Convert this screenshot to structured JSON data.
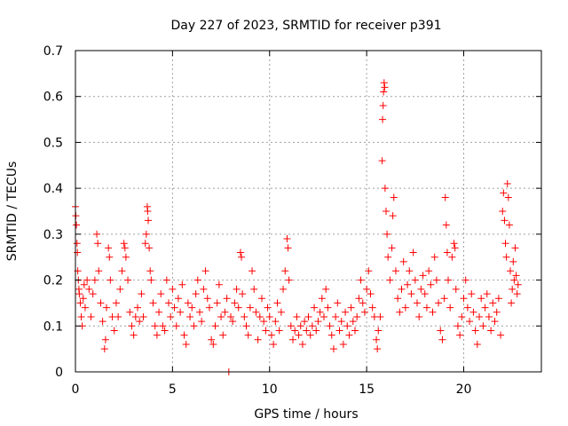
{
  "chart_data": {
    "type": "scatter",
    "title": "Day 227 of 2023, SRMTID for receiver p391",
    "xlabel": "GPS time / hours",
    "ylabel": "SRMTID / TECUs",
    "xlim": [
      0,
      24
    ],
    "ylim": [
      0,
      0.7
    ],
    "xticks": [
      0,
      5,
      10,
      15,
      20
    ],
    "xtick_labels": [
      "0",
      "5",
      "10",
      "15",
      "20"
    ],
    "yticks": [
      0,
      0.1,
      0.2,
      0.3,
      0.4,
      0.5,
      0.6,
      0.7
    ],
    "ytick_labels": [
      "0",
      "0.1",
      "0.2",
      "0.3",
      "0.4",
      "0.5",
      "0.6",
      "0.7"
    ],
    "grid": true,
    "marker": "+",
    "color": "#ff0000",
    "series": [
      {
        "name": "SRMTID",
        "points": [
          [
            0.0,
            0.36
          ],
          [
            0.02,
            0.34
          ],
          [
            0.05,
            0.32
          ],
          [
            0.08,
            0.28
          ],
          [
            0.1,
            0.26
          ],
          [
            0.12,
            0.22
          ],
          [
            0.15,
            0.2
          ],
          [
            0.18,
            0.18
          ],
          [
            0.2,
            0.17
          ],
          [
            0.25,
            0.15
          ],
          [
            0.3,
            0.12
          ],
          [
            0.35,
            0.1
          ],
          [
            0.4,
            0.16
          ],
          [
            0.45,
            0.19
          ],
          [
            0.5,
            0.14
          ],
          [
            0.6,
            0.2
          ],
          [
            0.7,
            0.18
          ],
          [
            0.8,
            0.12
          ],
          [
            0.9,
            0.17
          ],
          [
            1.0,
            0.2
          ],
          [
            1.1,
            0.3
          ],
          [
            1.15,
            0.28
          ],
          [
            1.2,
            0.22
          ],
          [
            1.3,
            0.15
          ],
          [
            1.4,
            0.11
          ],
          [
            1.5,
            0.05
          ],
          [
            1.55,
            0.07
          ],
          [
            1.6,
            0.14
          ],
          [
            1.7,
            0.27
          ],
          [
            1.75,
            0.25
          ],
          [
            1.8,
            0.2
          ],
          [
            1.9,
            0.12
          ],
          [
            2.0,
            0.09
          ],
          [
            2.1,
            0.15
          ],
          [
            2.2,
            0.12
          ],
          [
            2.3,
            0.18
          ],
          [
            2.4,
            0.22
          ],
          [
            2.5,
            0.28
          ],
          [
            2.55,
            0.27
          ],
          [
            2.6,
            0.25
          ],
          [
            2.7,
            0.2
          ],
          [
            2.8,
            0.13
          ],
          [
            2.9,
            0.1
          ],
          [
            3.0,
            0.08
          ],
          [
            3.1,
            0.12
          ],
          [
            3.2,
            0.14
          ],
          [
            3.3,
            0.11
          ],
          [
            3.4,
            0.17
          ],
          [
            3.5,
            0.12
          ],
          [
            3.6,
            0.28
          ],
          [
            3.65,
            0.3
          ],
          [
            3.7,
            0.36
          ],
          [
            3.72,
            0.35
          ],
          [
            3.75,
            0.33
          ],
          [
            3.8,
            0.27
          ],
          [
            3.85,
            0.22
          ],
          [
            3.9,
            0.2
          ],
          [
            4.0,
            0.15
          ],
          [
            4.1,
            0.1
          ],
          [
            4.2,
            0.08
          ],
          [
            4.3,
            0.13
          ],
          [
            4.4,
            0.17
          ],
          [
            4.5,
            0.1
          ],
          [
            4.6,
            0.09
          ],
          [
            4.7,
            0.2
          ],
          [
            4.8,
            0.15
          ],
          [
            4.9,
            0.12
          ],
          [
            5.0,
            0.18
          ],
          [
            5.1,
            0.14
          ],
          [
            5.2,
            0.1
          ],
          [
            5.3,
            0.16
          ],
          [
            5.4,
            0.13
          ],
          [
            5.5,
            0.19
          ],
          [
            5.6,
            0.08
          ],
          [
            5.7,
            0.06
          ],
          [
            5.8,
            0.15
          ],
          [
            5.9,
            0.12
          ],
          [
            6.0,
            0.14
          ],
          [
            6.1,
            0.1
          ],
          [
            6.2,
            0.17
          ],
          [
            6.3,
            0.2
          ],
          [
            6.4,
            0.13
          ],
          [
            6.5,
            0.11
          ],
          [
            6.6,
            0.18
          ],
          [
            6.7,
            0.22
          ],
          [
            6.8,
            0.16
          ],
          [
            6.9,
            0.14
          ],
          [
            7.0,
            0.07
          ],
          [
            7.1,
            0.06
          ],
          [
            7.2,
            0.1
          ],
          [
            7.3,
            0.15
          ],
          [
            7.4,
            0.19
          ],
          [
            7.5,
            0.12
          ],
          [
            7.6,
            0.08
          ],
          [
            7.7,
            0.13
          ],
          [
            7.8,
            0.16
          ],
          [
            7.9,
            0.0
          ],
          [
            8.0,
            0.12
          ],
          [
            8.1,
            0.11
          ],
          [
            8.2,
            0.15
          ],
          [
            8.3,
            0.18
          ],
          [
            8.4,
            0.14
          ],
          [
            8.5,
            0.26
          ],
          [
            8.55,
            0.25
          ],
          [
            8.6,
            0.17
          ],
          [
            8.7,
            0.12
          ],
          [
            8.8,
            0.1
          ],
          [
            8.9,
            0.08
          ],
          [
            9.0,
            0.14
          ],
          [
            9.1,
            0.22
          ],
          [
            9.2,
            0.18
          ],
          [
            9.3,
            0.13
          ],
          [
            9.4,
            0.07
          ],
          [
            9.5,
            0.12
          ],
          [
            9.6,
            0.16
          ],
          [
            9.7,
            0.11
          ],
          [
            9.8,
            0.09
          ],
          [
            9.9,
            0.14
          ],
          [
            10.0,
            0.12
          ],
          [
            10.1,
            0.08
          ],
          [
            10.2,
            0.06
          ],
          [
            10.3,
            0.11
          ],
          [
            10.4,
            0.15
          ],
          [
            10.5,
            0.09
          ],
          [
            10.6,
            0.13
          ],
          [
            10.7,
            0.18
          ],
          [
            10.8,
            0.22
          ],
          [
            10.9,
            0.29
          ],
          [
            10.95,
            0.27
          ],
          [
            11.0,
            0.2
          ],
          [
            11.1,
            0.1
          ],
          [
            11.2,
            0.07
          ],
          [
            11.3,
            0.09
          ],
          [
            11.4,
            0.12
          ],
          [
            11.5,
            0.08
          ],
          [
            11.6,
            0.1
          ],
          [
            11.7,
            0.06
          ],
          [
            11.8,
            0.11
          ],
          [
            11.9,
            0.09
          ],
          [
            12.0,
            0.12
          ],
          [
            12.1,
            0.08
          ],
          [
            12.2,
            0.1
          ],
          [
            12.3,
            0.14
          ],
          [
            12.4,
            0.09
          ],
          [
            12.5,
            0.11
          ],
          [
            12.6,
            0.13
          ],
          [
            12.7,
            0.16
          ],
          [
            12.8,
            0.12
          ],
          [
            12.9,
            0.18
          ],
          [
            13.0,
            0.14
          ],
          [
            13.1,
            0.1
          ],
          [
            13.2,
            0.08
          ],
          [
            13.3,
            0.05
          ],
          [
            13.4,
            0.12
          ],
          [
            13.5,
            0.15
          ],
          [
            13.6,
            0.09
          ],
          [
            13.7,
            0.11
          ],
          [
            13.8,
            0.06
          ],
          [
            13.9,
            0.13
          ],
          [
            14.0,
            0.1
          ],
          [
            14.1,
            0.08
          ],
          [
            14.2,
            0.14
          ],
          [
            14.3,
            0.11
          ],
          [
            14.4,
            0.09
          ],
          [
            14.5,
            0.12
          ],
          [
            14.6,
            0.16
          ],
          [
            14.7,
            0.2
          ],
          [
            14.8,
            0.15
          ],
          [
            14.9,
            0.13
          ],
          [
            15.0,
            0.18
          ],
          [
            15.1,
            0.22
          ],
          [
            15.2,
            0.17
          ],
          [
            15.3,
            0.14
          ],
          [
            15.4,
            0.12
          ],
          [
            15.5,
            0.07
          ],
          [
            15.55,
            0.05
          ],
          [
            15.6,
            0.09
          ],
          [
            15.7,
            0.12
          ],
          [
            15.8,
            0.46
          ],
          [
            15.82,
            0.55
          ],
          [
            15.85,
            0.58
          ],
          [
            15.87,
            0.61
          ],
          [
            15.9,
            0.63
          ],
          [
            15.93,
            0.62
          ],
          [
            15.95,
            0.4
          ],
          [
            16.0,
            0.35
          ],
          [
            16.05,
            0.3
          ],
          [
            16.1,
            0.25
          ],
          [
            16.2,
            0.2
          ],
          [
            16.3,
            0.27
          ],
          [
            16.35,
            0.34
          ],
          [
            16.4,
            0.38
          ],
          [
            16.5,
            0.22
          ],
          [
            16.6,
            0.16
          ],
          [
            16.7,
            0.13
          ],
          [
            16.8,
            0.18
          ],
          [
            16.9,
            0.24
          ],
          [
            17.0,
            0.14
          ],
          [
            17.1,
            0.19
          ],
          [
            17.2,
            0.22
          ],
          [
            17.3,
            0.17
          ],
          [
            17.4,
            0.26
          ],
          [
            17.5,
            0.2
          ],
          [
            17.6,
            0.15
          ],
          [
            17.7,
            0.12
          ],
          [
            17.8,
            0.18
          ],
          [
            17.9,
            0.21
          ],
          [
            18.0,
            0.17
          ],
          [
            18.1,
            0.14
          ],
          [
            18.2,
            0.22
          ],
          [
            18.3,
            0.19
          ],
          [
            18.4,
            0.13
          ],
          [
            18.5,
            0.25
          ],
          [
            18.6,
            0.2
          ],
          [
            18.7,
            0.15
          ],
          [
            18.8,
            0.09
          ],
          [
            18.9,
            0.07
          ],
          [
            19.0,
            0.16
          ],
          [
            19.05,
            0.38
          ],
          [
            19.1,
            0.32
          ],
          [
            19.15,
            0.26
          ],
          [
            19.2,
            0.2
          ],
          [
            19.3,
            0.14
          ],
          [
            19.4,
            0.25
          ],
          [
            19.5,
            0.28
          ],
          [
            19.55,
            0.27
          ],
          [
            19.6,
            0.18
          ],
          [
            19.7,
            0.1
          ],
          [
            19.8,
            0.08
          ],
          [
            19.9,
            0.12
          ],
          [
            20.0,
            0.16
          ],
          [
            20.1,
            0.2
          ],
          [
            20.2,
            0.14
          ],
          [
            20.3,
            0.11
          ],
          [
            20.4,
            0.17
          ],
          [
            20.5,
            0.13
          ],
          [
            20.6,
            0.09
          ],
          [
            20.7,
            0.06
          ],
          [
            20.8,
            0.12
          ],
          [
            20.9,
            0.16
          ],
          [
            21.0,
            0.1
          ],
          [
            21.1,
            0.14
          ],
          [
            21.2,
            0.17
          ],
          [
            21.3,
            0.12
          ],
          [
            21.4,
            0.09
          ],
          [
            21.5,
            0.15
          ],
          [
            21.6,
            0.11
          ],
          [
            21.7,
            0.13
          ],
          [
            21.8,
            0.16
          ],
          [
            21.9,
            0.08
          ],
          [
            22.0,
            0.35
          ],
          [
            22.05,
            0.39
          ],
          [
            22.1,
            0.33
          ],
          [
            22.15,
            0.28
          ],
          [
            22.2,
            0.25
          ],
          [
            22.25,
            0.41
          ],
          [
            22.3,
            0.38
          ],
          [
            22.35,
            0.32
          ],
          [
            22.4,
            0.22
          ],
          [
            22.45,
            0.15
          ],
          [
            22.5,
            0.18
          ],
          [
            22.55,
            0.24
          ],
          [
            22.6,
            0.2
          ],
          [
            22.65,
            0.27
          ],
          [
            22.7,
            0.21
          ],
          [
            22.75,
            0.17
          ],
          [
            22.8,
            0.19
          ]
        ]
      }
    ]
  }
}
